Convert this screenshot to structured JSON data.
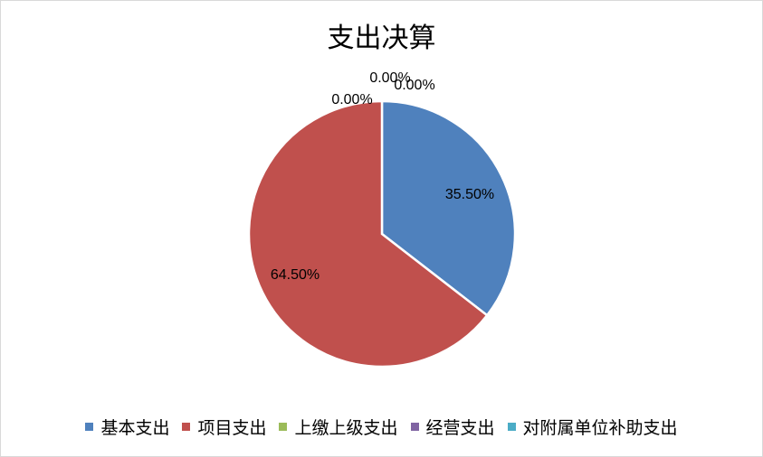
{
  "chart_data": {
    "type": "pie",
    "title": "支出决算",
    "categories": [
      "基本支出",
      "项目支出",
      "上缴上级支出",
      "经营支出",
      "对附属单位补助支出"
    ],
    "values": [
      35.5,
      64.5,
      0,
      0,
      0
    ],
    "data_labels": [
      "35.50%",
      "64.50%",
      "0.00%",
      "0.00%",
      "0.00%"
    ],
    "colors": [
      "#4f81bd",
      "#c0504d",
      "#9bbb59",
      "#8064a2",
      "#4bacc6"
    ],
    "legend_position": "bottom"
  }
}
